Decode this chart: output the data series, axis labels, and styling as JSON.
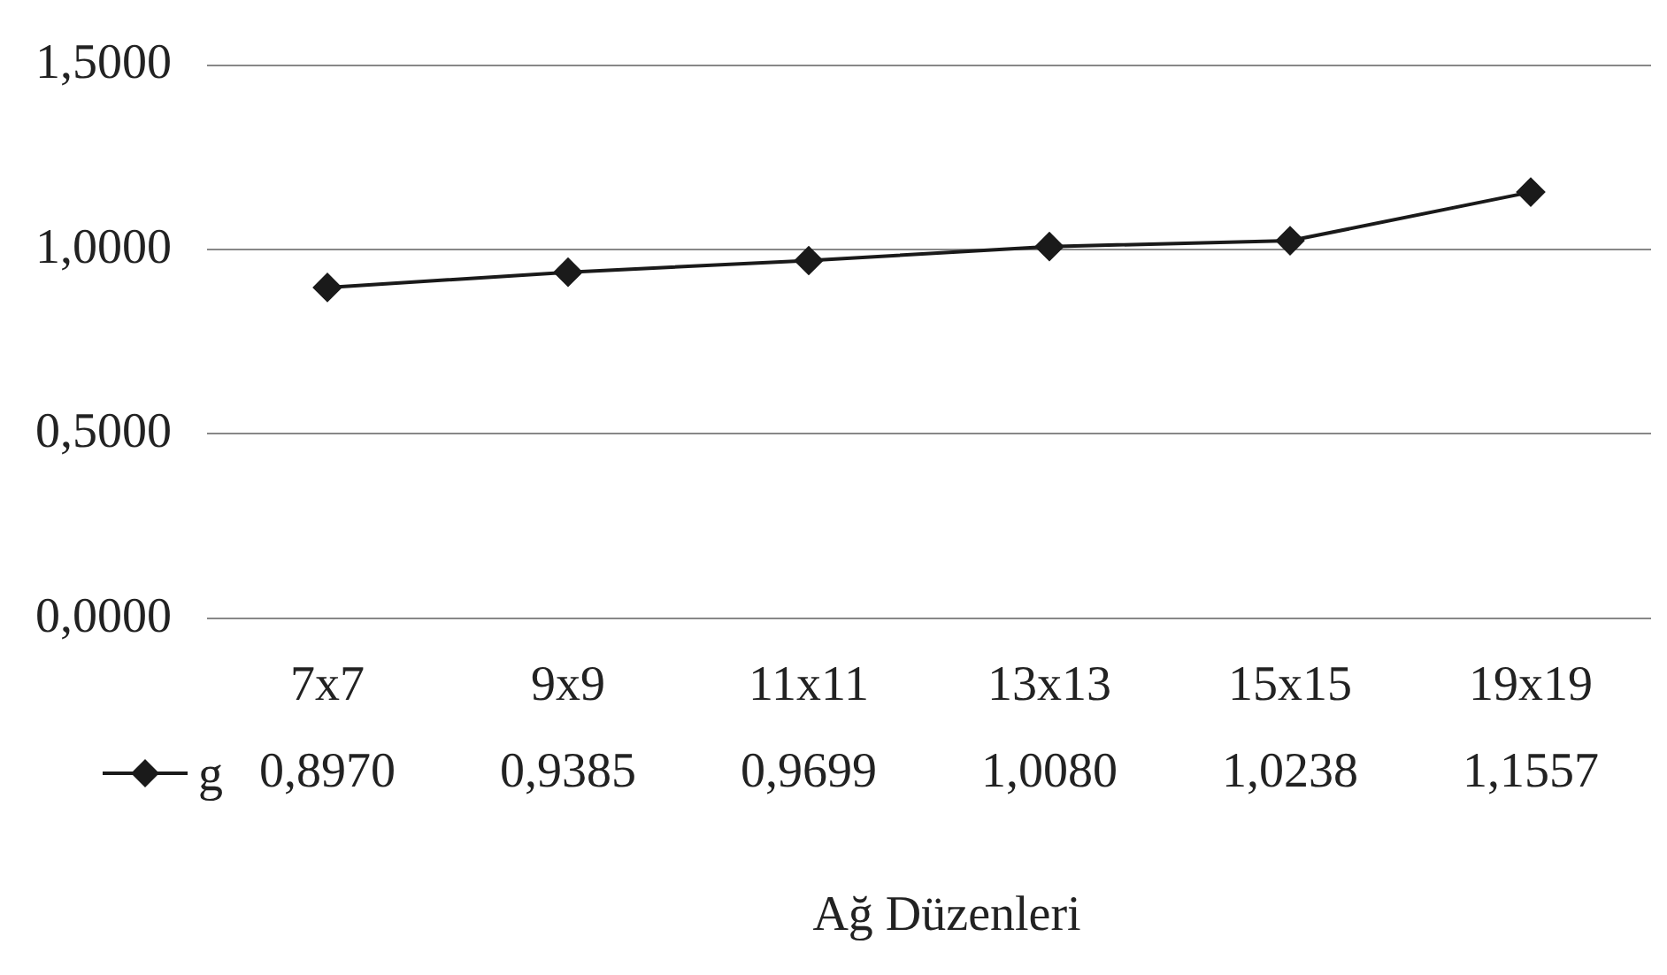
{
  "chart_data": {
    "type": "line",
    "xlabel": "Ağ Düzenleri",
    "categories": [
      "7x7",
      "9x9",
      "11x11",
      "13x13",
      "15x15",
      "19x19"
    ],
    "series": [
      {
        "name": "g",
        "color": "#1a1a1a",
        "values": [
          0.897,
          0.9385,
          0.9699,
          1.008,
          1.0238,
          1.1557
        ],
        "value_labels": [
          "0,8970",
          "0,9385",
          "0,9699",
          "1,0080",
          "1,0238",
          "1,1557"
        ]
      }
    ],
    "ylim": [
      0,
      1.5
    ],
    "yticks": [
      {
        "value": 0,
        "label": "0,0000"
      },
      {
        "value": 0.5,
        "label": "0,5000"
      },
      {
        "value": 1,
        "label": "1,0000"
      },
      {
        "value": 1.5,
        "label": "1,5000"
      }
    ],
    "grid": "y",
    "legend": "bottom",
    "marker": "diamond",
    "line_style": "solid"
  }
}
